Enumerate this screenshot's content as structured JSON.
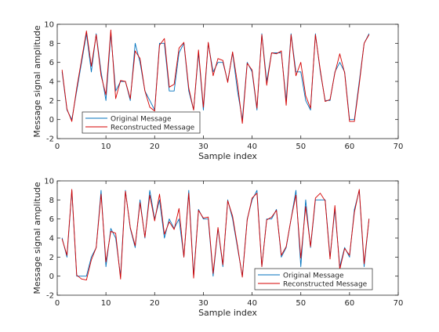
{
  "colors": {
    "original": "#0072BD",
    "reconstructed": "#D40000",
    "axes": "#262626"
  },
  "chart_data": [
    {
      "type": "line",
      "xlabel": "Sample index",
      "ylabel": "Message signal amplitude",
      "xlim": [
        0,
        70
      ],
      "ylim": [
        -2,
        10
      ],
      "xticks": [
        0,
        10,
        20,
        30,
        40,
        50,
        60,
        70
      ],
      "yticks": [
        -2,
        0,
        2,
        4,
        6,
        8,
        10
      ],
      "grid": false,
      "legend": "bottom-left",
      "x": [
        1,
        2,
        3,
        4,
        5,
        6,
        7,
        8,
        9,
        10,
        11,
        12,
        13,
        14,
        15,
        16,
        17,
        18,
        19,
        20,
        21,
        22,
        23,
        24,
        25,
        26,
        27,
        28,
        29,
        30,
        31,
        32,
        33,
        34,
        35,
        36,
        37,
        38,
        39,
        40,
        41,
        42,
        43,
        44,
        45,
        46,
        47,
        48,
        49,
        50,
        51,
        52,
        53,
        54,
        55,
        56,
        57,
        58,
        59,
        60,
        61,
        62,
        63,
        64
      ],
      "series": [
        {
          "name": "Original Message",
          "color": "#0072BD",
          "values": [
            5,
            1,
            0,
            3,
            6,
            9,
            5,
            9,
            5,
            2,
            9,
            3,
            4,
            4,
            2,
            8,
            6,
            3,
            2,
            1,
            8,
            8,
            3,
            3,
            7,
            8,
            3,
            1,
            7,
            1,
            8,
            5,
            6,
            6,
            4,
            7,
            3,
            0,
            6,
            5,
            1,
            9,
            4,
            7,
            7,
            7,
            2,
            9,
            5,
            5,
            2,
            1,
            9,
            5,
            2,
            2,
            5,
            6,
            5,
            0,
            0,
            4,
            8,
            9
          ]
        },
        {
          "name": "Reconstructed Message",
          "color": "#D40000",
          "values": [
            5.2,
            1.1,
            -0.2,
            3.3,
            6.3,
            9.3,
            5.6,
            8.9,
            4.6,
            2.6,
            9.4,
            2.2,
            4.1,
            4.0,
            2.2,
            7.2,
            6.4,
            3.0,
            1.3,
            0.9,
            7.8,
            8.5,
            3.4,
            3.7,
            7.5,
            8.1,
            3.3,
            1.0,
            7.3,
            1.3,
            8.1,
            4.6,
            6.4,
            6.2,
            3.9,
            7.1,
            3.8,
            -0.4,
            5.9,
            5.2,
            1.2,
            8.9,
            3.6,
            7.0,
            6.9,
            7.2,
            1.5,
            8.9,
            4.6,
            6.0,
            2.5,
            1.2,
            8.9,
            5.2,
            1.9,
            2.1,
            4.9,
            6.9,
            4.9,
            -0.2,
            -0.2,
            3.7,
            8.0,
            8.9
          ]
        }
      ]
    },
    {
      "type": "line",
      "xlabel": "Sample index",
      "ylabel": "Message signal amplitude",
      "xlim": [
        0,
        70
      ],
      "ylim": [
        -2,
        10
      ],
      "xticks": [
        0,
        10,
        20,
        30,
        40,
        50,
        60,
        70
      ],
      "yticks": [
        -2,
        0,
        2,
        4,
        6,
        8,
        10
      ],
      "grid": false,
      "legend": "bottom-right",
      "x": [
        1,
        2,
        3,
        4,
        5,
        6,
        7,
        8,
        9,
        10,
        11,
        12,
        13,
        14,
        15,
        16,
        17,
        18,
        19,
        20,
        21,
        22,
        23,
        24,
        25,
        26,
        27,
        28,
        29,
        30,
        31,
        32,
        33,
        34,
        35,
        36,
        37,
        38,
        39,
        40,
        41,
        42,
        43,
        44,
        45,
        46,
        47,
        48,
        49,
        50,
        51,
        52,
        53,
        54,
        55,
        56,
        57,
        58,
        59,
        60,
        61,
        62,
        63,
        64
      ],
      "series": [
        {
          "name": "Original Message",
          "color": "#0072BD",
          "values": [
            4,
            2,
            9,
            0,
            0,
            0,
            2,
            3,
            9,
            1,
            5,
            4,
            0,
            9,
            5,
            3,
            8,
            4,
            9,
            6,
            8,
            4,
            6,
            5,
            6,
            2,
            9,
            0,
            7,
            6,
            6,
            0,
            5,
            1,
            8,
            6,
            3,
            0,
            6,
            8,
            9,
            1,
            6,
            6,
            7,
            2,
            3,
            6,
            9,
            1,
            8,
            3,
            8,
            8,
            8,
            2,
            7,
            1,
            3,
            2,
            7,
            9,
            1,
            6
          ]
        },
        {
          "name": "Reconstructed Message",
          "color": "#D40000",
          "values": [
            3.9,
            2.2,
            9.1,
            0.1,
            -0.3,
            -0.4,
            1.7,
            3.0,
            8.6,
            1.5,
            4.7,
            4.5,
            -0.3,
            8.9,
            5.1,
            3.2,
            7.7,
            4.1,
            8.5,
            5.8,
            8.6,
            4.4,
            5.7,
            4.9,
            7.1,
            2.0,
            8.7,
            -0.2,
            6.9,
            6.1,
            6.2,
            0.3,
            5.1,
            1.2,
            7.9,
            6.3,
            3.2,
            -0.1,
            5.9,
            8.2,
            8.7,
            1.0,
            5.9,
            6.2,
            6.9,
            2.2,
            3.1,
            6.0,
            8.5,
            1.9,
            7.3,
            3.1,
            8.2,
            8.7,
            7.9,
            1.8,
            7.4,
            0.7,
            2.9,
            2.2,
            6.7,
            9.1,
            1.3,
            6.0
          ]
        }
      ]
    }
  ]
}
